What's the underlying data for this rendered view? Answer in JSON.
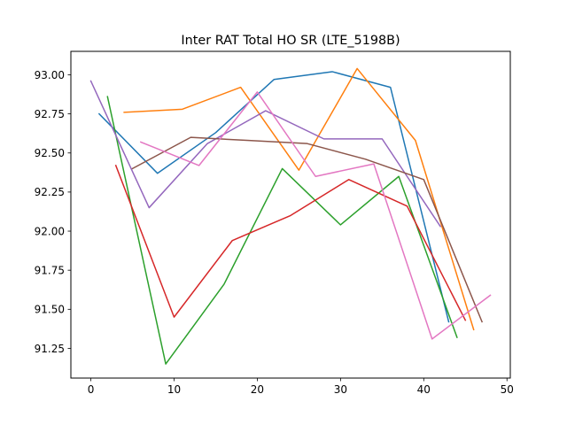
{
  "chart_data": {
    "type": "line",
    "title": "Inter RAT Total HO SR (LTE_5198B)",
    "xlabel": "",
    "ylabel": "",
    "xlim": [
      -2.4,
      50.4
    ],
    "ylim": [
      91.06,
      93.15
    ],
    "xticks": [
      0,
      10,
      20,
      30,
      40,
      50
    ],
    "yticks": [
      91.25,
      91.5,
      91.75,
      92.0,
      92.25,
      92.5,
      92.75,
      93.0
    ],
    "ytick_labels": [
      "91.25",
      "91.50",
      "91.75",
      "92.00",
      "92.25",
      "92.50",
      "92.75",
      "93.00"
    ],
    "grid": false,
    "legend": false,
    "series": [
      {
        "color": "#1f77b4",
        "x": [
          1,
          8,
          15,
          22,
          29,
          36,
          43
        ],
        "y": [
          92.75,
          92.37,
          92.63,
          92.97,
          93.02,
          92.92,
          91.42
        ]
      },
      {
        "color": "#ff7f0e",
        "x": [
          4,
          11,
          18,
          25,
          32,
          39,
          46
        ],
        "y": [
          92.76,
          92.78,
          92.92,
          92.39,
          93.04,
          92.58,
          91.37
        ]
      },
      {
        "color": "#2ca02c",
        "x": [
          2,
          9,
          16,
          23,
          30,
          37,
          44
        ],
        "y": [
          92.86,
          91.15,
          91.66,
          92.4,
          92.04,
          92.35,
          91.32
        ]
      },
      {
        "color": "#d62728",
        "x": [
          3,
          10,
          17,
          24,
          31,
          38,
          45
        ],
        "y": [
          92.42,
          91.45,
          91.94,
          92.1,
          92.33,
          92.16,
          91.43
        ]
      },
      {
        "color": "#9467bd",
        "x": [
          0,
          7,
          14,
          21,
          28,
          35,
          42
        ],
        "y": [
          92.96,
          92.15,
          92.56,
          92.77,
          92.59,
          92.59,
          92.03
        ]
      },
      {
        "color": "#8c564b",
        "x": [
          5,
          12,
          19,
          26,
          33,
          40,
          47
        ],
        "y": [
          92.4,
          92.6,
          92.58,
          92.56,
          92.46,
          92.33,
          91.42
        ]
      },
      {
        "color": "#e377c2",
        "x": [
          6,
          13,
          20,
          27,
          34,
          41,
          48
        ],
        "y": [
          92.57,
          92.42,
          92.89,
          92.35,
          92.43,
          91.31,
          91.59
        ]
      }
    ]
  }
}
